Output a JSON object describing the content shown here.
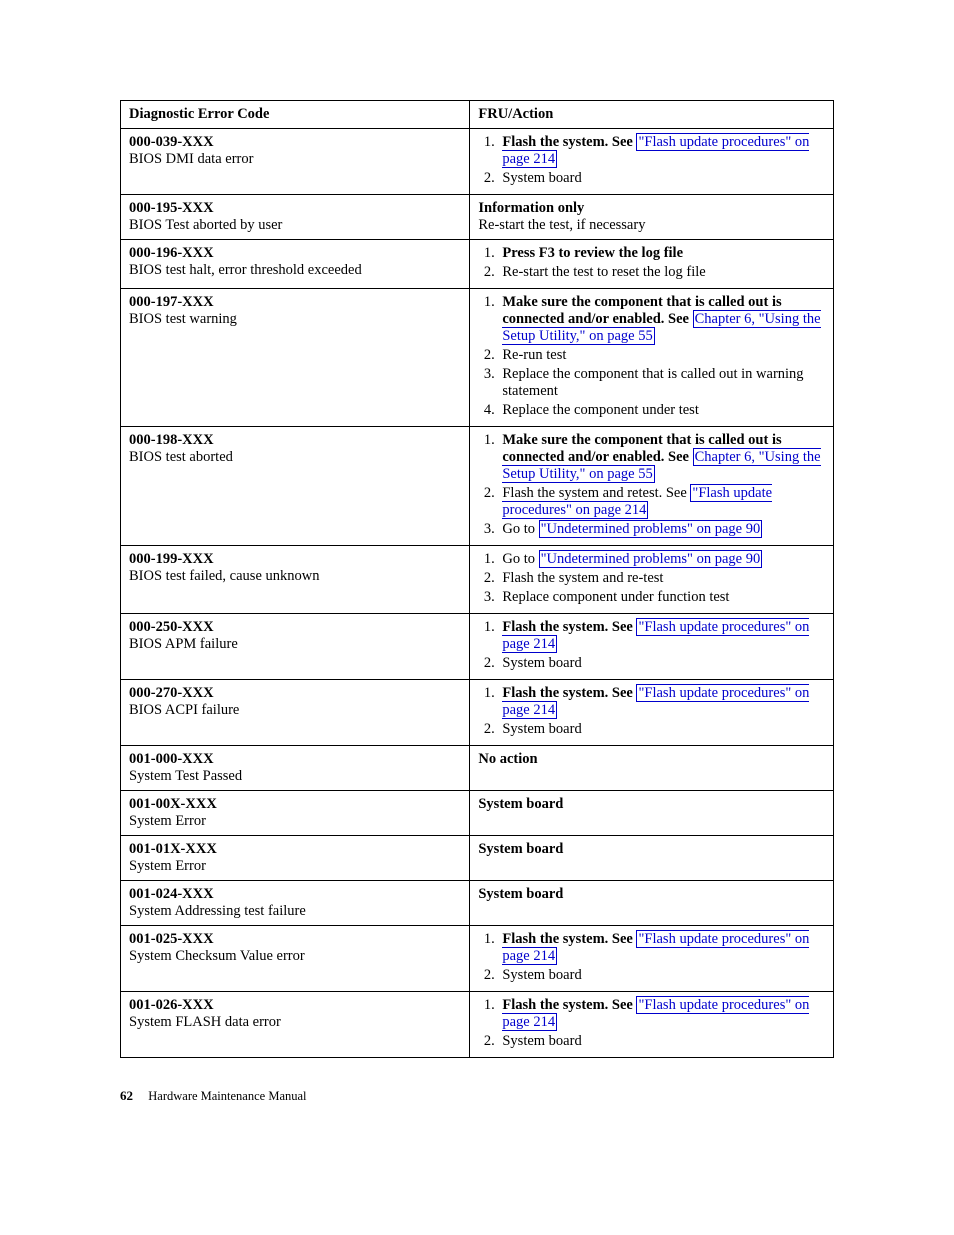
{
  "headers": {
    "col1": "Diagnostic Error Code",
    "col2": "FRU/Action"
  },
  "flash_link_text": "\"Flash update procedures\" on page 214",
  "setup_util_link_text": "Chapter 6, \"Using the Setup Utility,\" on page 55",
  "undet_link_text": "\"Undetermined problems\" on page 90",
  "flash_update_link_short": "\"Flash update procedures\" on page 214",
  "rows": {
    "r1": {
      "code": "000-039-XXX",
      "desc": "BIOS DMI data error",
      "a1b": "Flash the system. See ",
      "a2": "System board"
    },
    "r2": {
      "code": "000-195-XXX",
      "desc": "BIOS Test aborted by user",
      "info_b": "Information only",
      "info": "Re-start the test, if necessary"
    },
    "r3": {
      "code": "000-196-XXX",
      "desc": "BIOS test halt, error threshold exceeded",
      "a1b": "Press F3 to review the log file",
      "a2": "Re-start the test to reset the log file"
    },
    "r4": {
      "code": "000-197-XXX",
      "desc": "BIOS test warning",
      "a1b": "Make sure the component that is called out is connected and/or enabled. See ",
      "a2": "Re-run test",
      "a3": "Replace the component that is called out in warning statement",
      "a4": "Replace the component under test"
    },
    "r5": {
      "code": "000-198-XXX",
      "desc": "BIOS test aborted",
      "a1b": "Make sure the component that is called out is connected and/or enabled. See ",
      "a2pre": "Flash the system and retest. See ",
      "a3pre": "Go to "
    },
    "r6": {
      "code": "000-199-XXX",
      "desc": "BIOS test failed, cause unknown",
      "a1pre": "Go to ",
      "a2": "Flash the system and re-test",
      "a3": "Replace component under function test"
    },
    "r7": {
      "code": "000-250-XXX",
      "desc": "BIOS APM failure",
      "a1b": "Flash the system. See ",
      "a2": "System board"
    },
    "r8": {
      "code": "000-270-XXX",
      "desc": "BIOS ACPI failure",
      "a1b": "Flash the system. See ",
      "a2": "System board"
    },
    "r9": {
      "code": "001-000-XXX",
      "desc": "System Test Passed",
      "action_b": "No action"
    },
    "r10": {
      "code": "001-00X-XXX",
      "desc": "System Error",
      "action_b": "System board"
    },
    "r11": {
      "code": "001-01X-XXX",
      "desc": "System Error",
      "action_b": "System board"
    },
    "r12": {
      "code": "001-024-XXX",
      "desc": "System Addressing test failure",
      "action_b": "System board"
    },
    "r13": {
      "code": "001-025-XXX",
      "desc": "System Checksum Value error",
      "a1b": "Flash the system. See ",
      "a2": "System board"
    },
    "r14": {
      "code": "001-026-XXX",
      "desc": "System FLASH data error",
      "a1b": "Flash the system. See ",
      "a2": "System board"
    }
  },
  "footer": {
    "page_no": "62",
    "title": "Hardware Maintenance Manual"
  }
}
